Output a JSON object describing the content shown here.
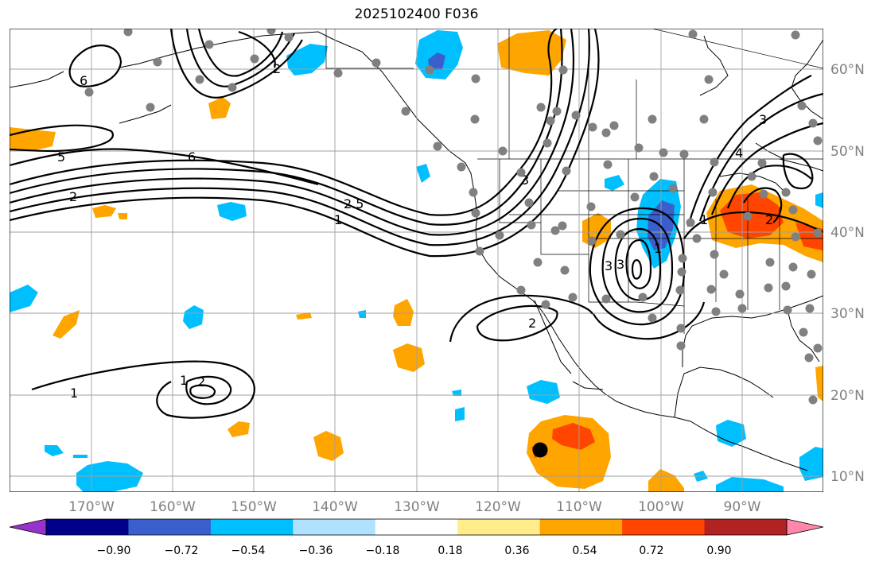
{
  "title": "2025102400 F036",
  "chart_data": {
    "type": "map",
    "title": "2025102400 F036",
    "projection": "PlateCarree",
    "lon_range": [
      -180,
      -80
    ],
    "lat_range": [
      8,
      65
    ],
    "lon_ticks": [
      {
        "value": -170,
        "label": "170°W"
      },
      {
        "value": -160,
        "label": "160°W"
      },
      {
        "value": -150,
        "label": "150°W"
      },
      {
        "value": -140,
        "label": "140°W"
      },
      {
        "value": -130,
        "label": "130°W"
      },
      {
        "value": -120,
        "label": "120°W"
      },
      {
        "value": -110,
        "label": "110°W"
      },
      {
        "value": -100,
        "label": "100°W"
      },
      {
        "value": -90,
        "label": "90°W"
      }
    ],
    "lat_ticks": [
      {
        "value": 60,
        "label": "60°N"
      },
      {
        "value": 50,
        "label": "50°N"
      },
      {
        "value": 40,
        "label": "40°N"
      },
      {
        "value": 30,
        "label": "30°N"
      },
      {
        "value": 20,
        "label": "20°N"
      },
      {
        "value": 10,
        "label": "10°N"
      }
    ],
    "colorbar": {
      "ticks": [
        "−0.90",
        "−0.72",
        "−0.54",
        "−0.36",
        "−0.18",
        "0.18",
        "0.36",
        "0.54",
        "0.72",
        "0.90"
      ],
      "colors": [
        "#9932cc",
        "#00008b",
        "#3a5fcd",
        "#00bfff",
        "#b0e2ff",
        "#ffffff",
        "#ffec8b",
        "#ffa500",
        "#ff4500",
        "#b22222",
        "#ff88aa"
      ]
    },
    "contour_labels": [
      "6",
      "5",
      "6",
      "2",
      "2.5",
      "1",
      "1",
      "2",
      "1",
      "3",
      "3",
      "4",
      "3",
      "3",
      "2",
      "1",
      "2",
      "1",
      "2"
    ],
    "storm_marker": {
      "lon": -114.8,
      "lat": 13.1
    }
  }
}
